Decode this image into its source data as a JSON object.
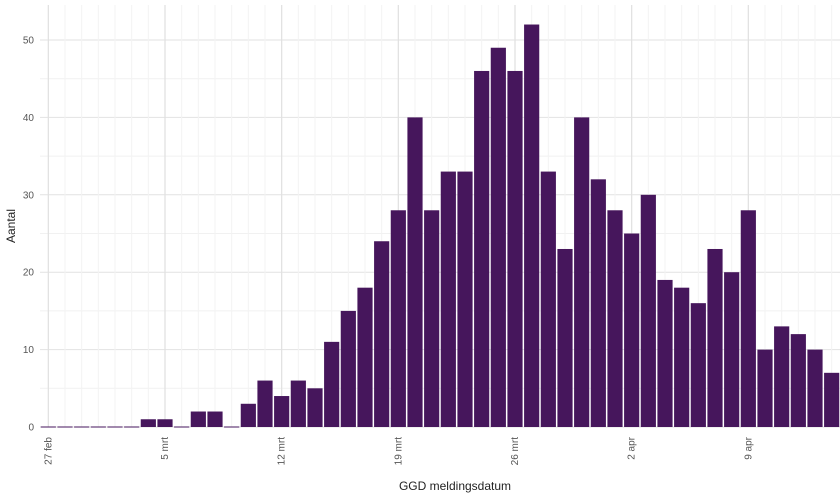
{
  "chart_data": {
    "type": "bar",
    "xlabel": "GGD meldingsdatum",
    "ylabel": "Aantal",
    "ylim": [
      0,
      54
    ],
    "y_ticks": [
      0,
      10,
      20,
      30,
      40,
      50
    ],
    "x_tick_labels": [
      {
        "label": "27 feb",
        "index": 0
      },
      {
        "label": "5 mrt",
        "index": 7
      },
      {
        "label": "12 mrt",
        "index": 14
      },
      {
        "label": "19 mrt",
        "index": 21
      },
      {
        "label": "26 mrt",
        "index": 28
      },
      {
        "label": "2 apr",
        "index": 35
      },
      {
        "label": "9 apr",
        "index": 42
      }
    ],
    "categories": [
      "27 feb",
      "28 feb",
      "29 feb",
      "1 mrt",
      "2 mrt",
      "3 mrt",
      "4 mrt",
      "5 mrt",
      "6 mrt",
      "7 mrt",
      "8 mrt",
      "9 mrt",
      "10 mrt",
      "11 mrt",
      "12 mrt",
      "13 mrt",
      "14 mrt",
      "15 mrt",
      "16 mrt",
      "17 mrt",
      "18 mrt",
      "19 mrt",
      "20 mrt",
      "21 mrt",
      "22 mrt",
      "23 mrt",
      "24 mrt",
      "25 mrt",
      "26 mrt",
      "27 mrt",
      "28 mrt",
      "29 mrt",
      "30 mrt",
      "31 mrt",
      "1 apr",
      "2 apr",
      "3 apr",
      "4 apr",
      "5 apr",
      "6 apr",
      "7 apr",
      "8 apr",
      "9 apr",
      "10 apr",
      "11 apr",
      "12 apr",
      "13 apr",
      "14 apr"
    ],
    "values": [
      0,
      0,
      0,
      0,
      0,
      0,
      1,
      1,
      0,
      2,
      2,
      0,
      3,
      6,
      4,
      6,
      5,
      11,
      15,
      18,
      24,
      28,
      40,
      28,
      33,
      33,
      46,
      49,
      46,
      52,
      33,
      23,
      40,
      32,
      28,
      25,
      30,
      19,
      18,
      16,
      23,
      20,
      28,
      10,
      13,
      12,
      10,
      7
    ],
    "bar_color": "#46165c",
    "grid": true
  }
}
